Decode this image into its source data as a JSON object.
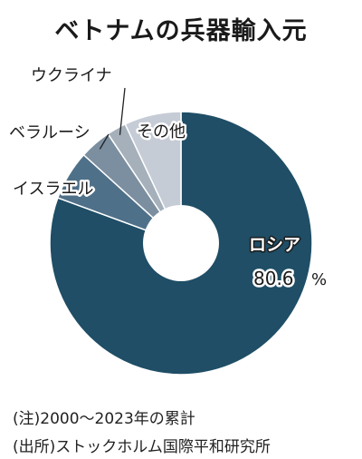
{
  "title": "ベトナムの兵器輸入元",
  "chart_data": {
    "type": "pie",
    "style": "donut",
    "title": "ベトナムの兵器輸入元",
    "slices": [
      {
        "label": "ロシア",
        "value": 80.6,
        "value_label": "80.6",
        "unit": "%",
        "color": "#1f4e66"
      },
      {
        "label": "イスラエル",
        "value": 6.1,
        "color": "#4f7089"
      },
      {
        "label": "ベラルーシ",
        "value": 3.9,
        "color": "#7c8fa0"
      },
      {
        "label": "ウクライナ",
        "value": 2.4,
        "color": "#a5b0bb"
      },
      {
        "label": "その他",
        "value": 7.0,
        "color": "#c6ccd6"
      }
    ]
  },
  "notes": {
    "period": "(注)2000〜2023年の累計",
    "source": "(出所)ストックホルム国際平和研究所"
  }
}
